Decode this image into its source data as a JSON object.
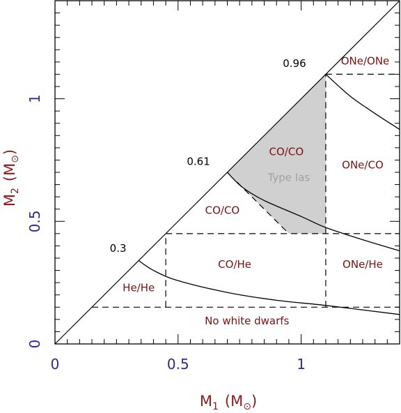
{
  "chart_data": {
    "type": "line",
    "x_axis": {
      "label_main": "M",
      "label_sub": "1",
      "label_unit": "(M",
      "label_unit_close": ")",
      "range": [
        0,
        1.4
      ],
      "ticks": [
        {
          "value": 0,
          "label": "0"
        },
        {
          "value": 0.5,
          "label": "0.5"
        },
        {
          "value": 1,
          "label": "1"
        }
      ]
    },
    "y_axis": {
      "label_main": "M",
      "label_sub": "2",
      "label_unit": "(M",
      "label_unit_close": ")",
      "range": [
        0,
        1.4
      ],
      "ticks": [
        {
          "value": 0,
          "label": "0"
        },
        {
          "value": 0.5,
          "label": "0.5"
        },
        {
          "value": 1,
          "label": "1"
        }
      ]
    },
    "diagonal": [
      [
        0,
        0
      ],
      [
        1.4,
        1.4
      ]
    ],
    "boundary_curves": [
      {
        "points": [
          [
            0.34,
            0.34
          ],
          [
            0.4,
            0.3
          ],
          [
            0.5,
            0.258
          ],
          [
            0.7,
            0.21
          ],
          [
            0.9,
            0.178
          ],
          [
            1.1,
            0.157
          ],
          [
            1.4,
            0.12
          ]
        ]
      },
      {
        "points": [
          [
            0.7,
            0.7
          ],
          [
            0.76,
            0.64
          ],
          [
            0.85,
            0.585
          ],
          [
            1.0,
            0.52
          ],
          [
            1.1,
            0.475
          ],
          [
            1.25,
            0.425
          ],
          [
            1.4,
            0.38
          ]
        ]
      },
      {
        "points": [
          [
            1.1,
            1.1
          ],
          [
            1.2,
            1.01
          ],
          [
            1.3,
            0.94
          ],
          [
            1.4,
            0.875
          ]
        ]
      }
    ],
    "dashed_lines": [
      [
        [
          0.15,
          0.15
        ],
        [
          1.4,
          0.15
        ]
      ],
      [
        [
          0.45,
          0.15
        ],
        [
          0.45,
          0.45
        ]
      ],
      [
        [
          0.45,
          0.45
        ],
        [
          1.4,
          0.45
        ]
      ],
      [
        [
          1.1,
          0.15
        ],
        [
          1.1,
          1.1
        ]
      ],
      [
        [
          1.1,
          1.1
        ],
        [
          1.4,
          1.1
        ]
      ],
      [
        [
          0.74,
          0.66
        ],
        [
          0.95,
          0.45
        ]
      ]
    ],
    "shaded_region": [
      [
        0.7,
        0.7
      ],
      [
        1.1,
        1.1
      ],
      [
        1.1,
        0.45
      ],
      [
        0.95,
        0.45
      ],
      [
        0.74,
        0.66
      ]
    ],
    "regions": [
      {
        "label": "He/He",
        "x": 0.34,
        "y": 0.215,
        "muted": false
      },
      {
        "label": "CO/He",
        "x": 0.73,
        "y": 0.31,
        "muted": false
      },
      {
        "label": "ONe/He",
        "x": 1.25,
        "y": 0.31,
        "muted": false
      },
      {
        "label": "CO/CO",
        "x": 0.68,
        "y": 0.53,
        "muted": false
      },
      {
        "label": "CO/CO",
        "x": 0.94,
        "y": 0.77,
        "muted": false
      },
      {
        "label": "Type Ias",
        "x": 0.95,
        "y": 0.665,
        "muted": true
      },
      {
        "label": "ONe/CO",
        "x": 1.25,
        "y": 0.715,
        "muted": false
      },
      {
        "label": "ONe/ONe",
        "x": 1.26,
        "y": 1.14,
        "muted": false
      },
      {
        "label": "No white dwarfs",
        "x": 0.78,
        "y": 0.08,
        "muted": false
      }
    ],
    "thresholds": [
      {
        "label": "0.3",
        "x": 0.29,
        "y": 0.375
      },
      {
        "label": "0.61",
        "x": 0.63,
        "y": 0.73
      },
      {
        "label": "0.96",
        "x": 1.02,
        "y": 1.13
      }
    ],
    "grid": false,
    "legend": "none"
  }
}
